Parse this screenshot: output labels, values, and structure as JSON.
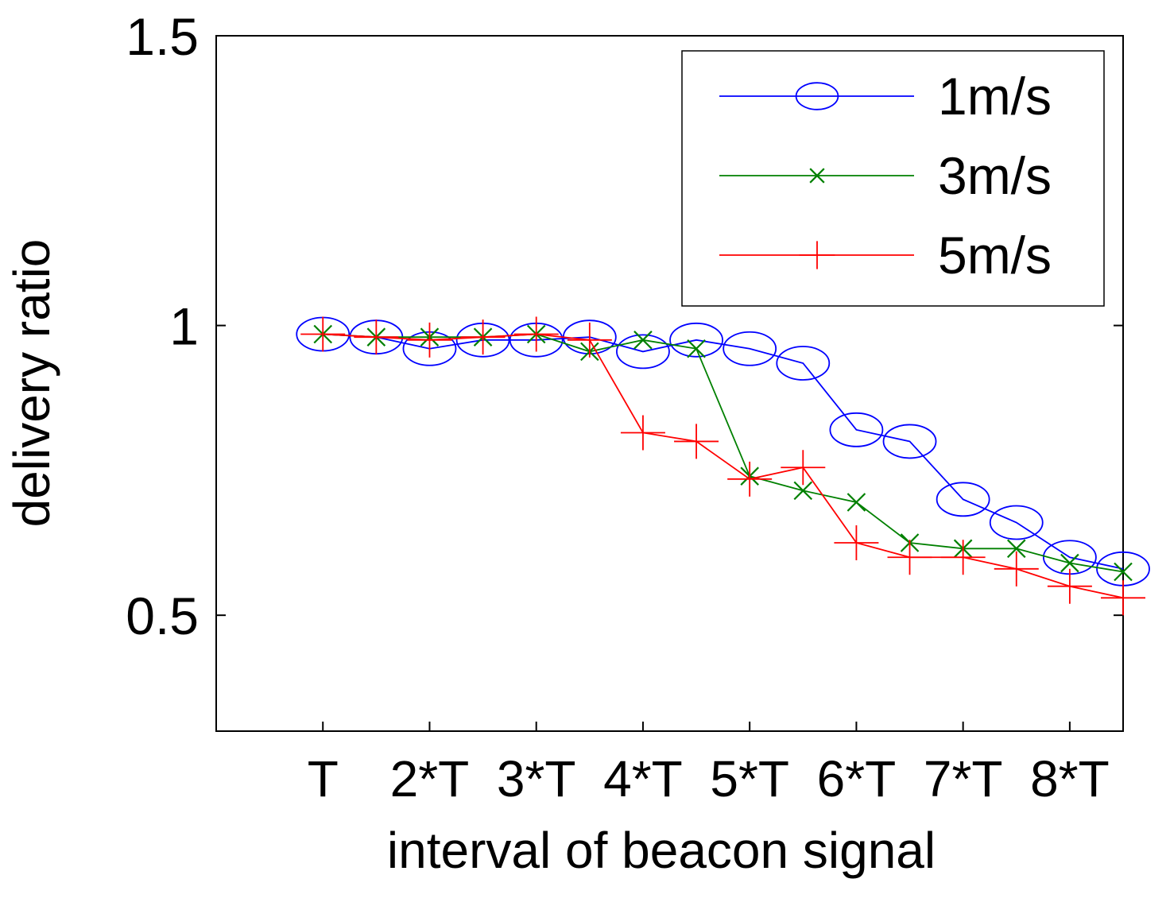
{
  "chart_data": {
    "type": "line",
    "title": "",
    "xlabel": "interval of beacon signal",
    "ylabel": "delivery ratio",
    "x": [
      1,
      1.5,
      2,
      2.5,
      3,
      3.5,
      4,
      4.5,
      5,
      5.5,
      6,
      6.5,
      7,
      7.5,
      8,
      8.5
    ],
    "xlim": [
      0,
      8.5
    ],
    "xticks": [
      1,
      2,
      3,
      4,
      5,
      6,
      7,
      8
    ],
    "xtick_labels": [
      "T",
      "2*T",
      "3*T",
      "4*T",
      "5*T",
      "6*T",
      "7*T",
      "8*T"
    ],
    "ylim": [
      0.3,
      1.5
    ],
    "yticks": [
      0.5,
      1,
      1.5
    ],
    "ytick_labels": [
      "0.5",
      "1",
      "1.5"
    ],
    "grid": false,
    "legend_position": "top-right",
    "series": [
      {
        "name": "1m/s",
        "color": "#0000ff",
        "marker": "circle",
        "values": [
          0.985,
          0.98,
          0.96,
          0.975,
          0.975,
          0.98,
          0.955,
          0.975,
          0.96,
          0.935,
          0.82,
          0.8,
          0.7,
          0.66,
          0.6,
          0.58
        ]
      },
      {
        "name": "3m/s",
        "color": "#008000",
        "marker": "x",
        "values": [
          0.985,
          0.98,
          0.98,
          0.98,
          0.985,
          0.955,
          0.975,
          0.96,
          0.74,
          0.715,
          0.695,
          0.625,
          0.615,
          0.615,
          0.59,
          0.575
        ]
      },
      {
        "name": "5m/s",
        "color": "#ff0000",
        "marker": "plus",
        "values": [
          0.985,
          0.98,
          0.975,
          0.98,
          0.985,
          0.975,
          0.815,
          0.8,
          0.735,
          0.755,
          0.625,
          0.6,
          0.6,
          0.58,
          0.55,
          0.53
        ]
      }
    ]
  }
}
